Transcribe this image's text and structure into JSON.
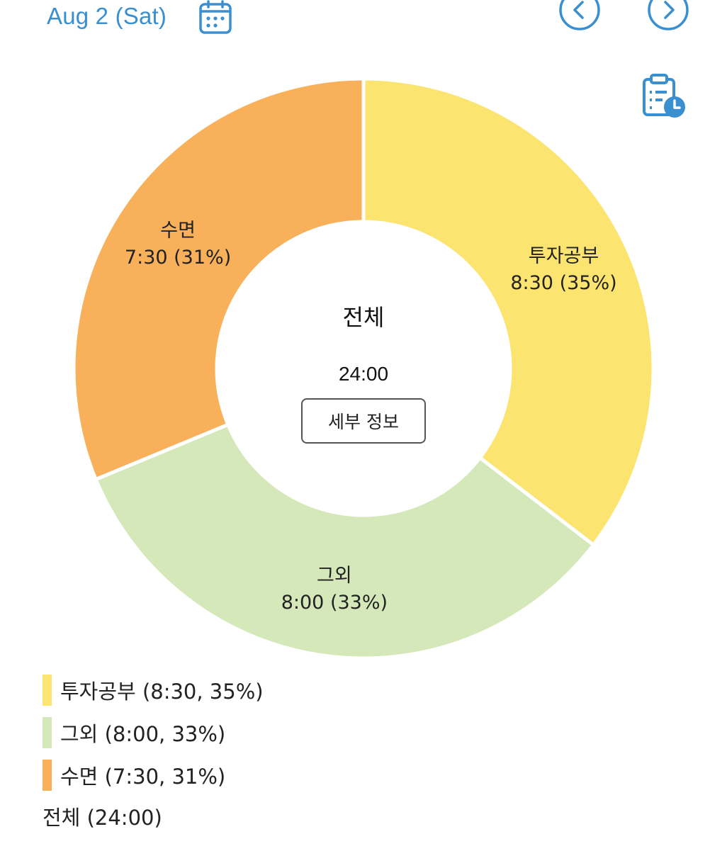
{
  "header": {
    "date": "Aug 2 (Sat)",
    "accent_color": "#3a8fd0"
  },
  "icons": {
    "calendar": "calendar-icon",
    "prev": "chevron-left-icon",
    "next": "chevron-right-icon",
    "log": "clipboard-clock-icon"
  },
  "center": {
    "title": "전체",
    "total": "24:00",
    "detail_button": "세부 정보"
  },
  "chart_data": {
    "type": "pie",
    "categories": [
      "투자공부",
      "그외",
      "수면"
    ],
    "values": [
      8.5,
      8.0,
      7.5
    ],
    "durations": [
      "8:30",
      "8:00",
      "7:30"
    ],
    "percents": [
      35,
      33,
      31
    ],
    "colors": [
      "#fbe46f",
      "#d4e8b9",
      "#f8b05a"
    ],
    "slice_labels": [
      "8:30 (35%)",
      "8:00 (33%)",
      "7:30 (31%)"
    ],
    "start_angle": "12 o'clock",
    "direction": "clockwise",
    "donut": true
  },
  "legend": {
    "items": [
      {
        "label": "투자공부 (8:30, 35%)",
        "color": "#fbe46f"
      },
      {
        "label": "그외 (8:00, 33%)",
        "color": "#d4e8b9"
      },
      {
        "label": "수면 (7:30, 31%)",
        "color": "#f8b05a"
      }
    ],
    "total": "전체 (24:00)"
  }
}
